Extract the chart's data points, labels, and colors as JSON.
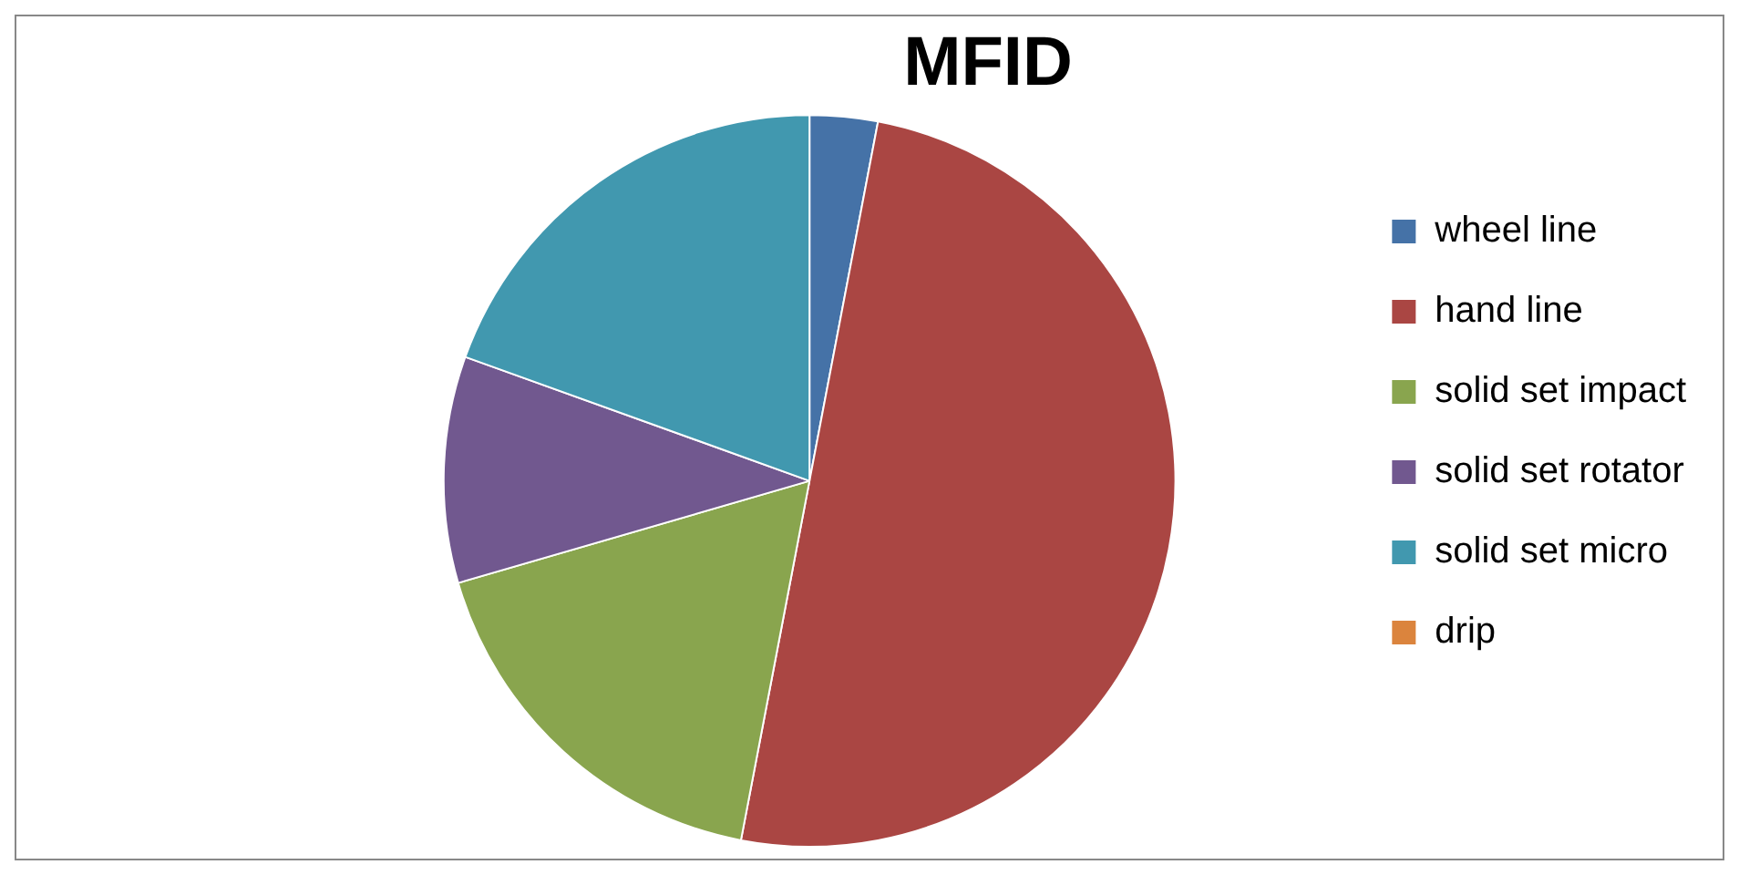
{
  "chart_data": {
    "type": "pie",
    "title": "MFID",
    "categories": [
      "wheel line",
      "hand line",
      "solid set impact",
      "solid set rotator",
      "solid set micro",
      "drip"
    ],
    "values": [
      3,
      50,
      17.5,
      10,
      19.5,
      0
    ],
    "colors": [
      "#4572a7",
      "#aa4643",
      "#89a54e",
      "#71588f",
      "#4198af",
      "#db843d"
    ],
    "legend": "right"
  }
}
